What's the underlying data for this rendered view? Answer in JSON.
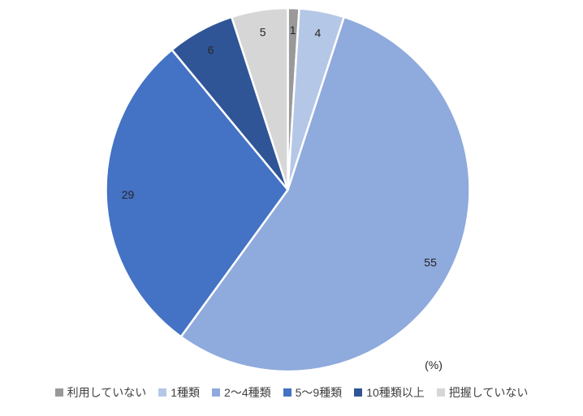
{
  "chart_data": {
    "type": "pie",
    "title": "",
    "unit_label": "(%)",
    "start_angle_deg": 0,
    "direction": "clockwise",
    "legend_position": "bottom",
    "data_label_color": "#262626",
    "slice_border_color": "#ffffff",
    "slices": [
      {
        "label": "利用していない",
        "value": 1,
        "color": "#999999"
      },
      {
        "label": "1種類",
        "value": 4,
        "color": "#B4C7E7"
      },
      {
        "label": "2～4種類",
        "value": 55,
        "color": "#8FAADC"
      },
      {
        "label": "5～9種類",
        "value": 29,
        "color": "#4472C4"
      },
      {
        "label": "10種類以上",
        "value": 6,
        "color": "#2F5597"
      },
      {
        "label": "把握していない",
        "value": 5,
        "color": "#D6D6D6"
      }
    ]
  }
}
